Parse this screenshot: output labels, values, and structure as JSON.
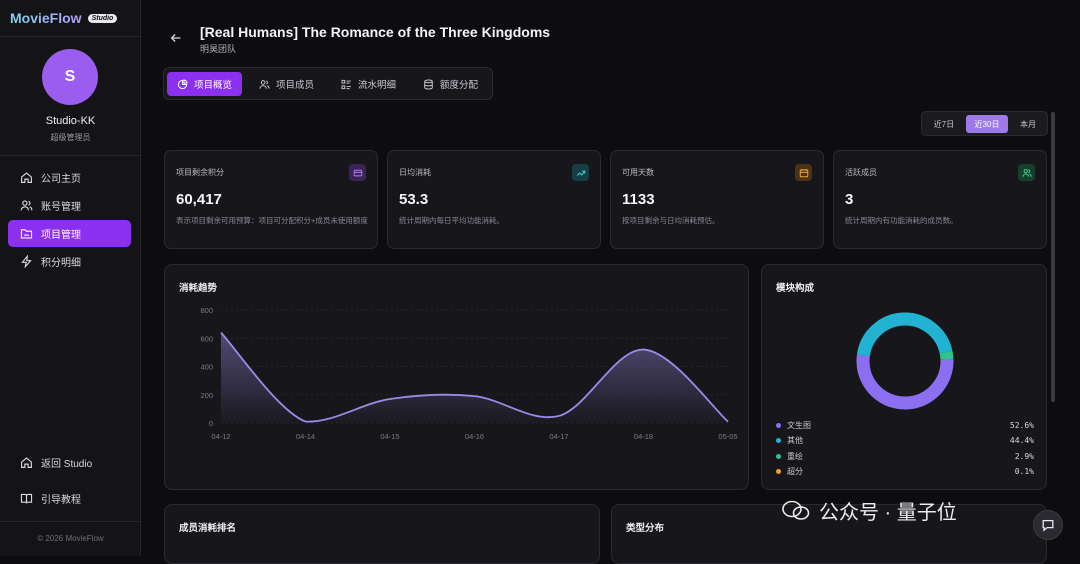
{
  "sidebar": {
    "logo_text": "MovieFlow",
    "logo_badge": "Studio",
    "avatar_letter": "S",
    "user_name": "Studio-KK",
    "user_role": "超级管理员",
    "items": [
      {
        "label": "公司主页",
        "icon": "home-icon"
      },
      {
        "label": "账号管理",
        "icon": "users-icon"
      },
      {
        "label": "项目管理",
        "icon": "folder-icon",
        "active": true
      },
      {
        "label": "积分明细",
        "icon": "bolt-icon"
      }
    ],
    "bottom_items": [
      {
        "label": "返回 Studio",
        "icon": "home-icon"
      },
      {
        "label": "引导教程",
        "icon": "book-icon"
      }
    ],
    "copyright": "© 2026 MovieFlow"
  },
  "header": {
    "title": "[Real Humans] The Romance of the Three Kingdoms",
    "subtitle": "明昊团队"
  },
  "tabs": [
    {
      "label": "项目概览",
      "icon": "pie-icon",
      "active": true
    },
    {
      "label": "项目成员",
      "icon": "users-icon"
    },
    {
      "label": "流水明细",
      "icon": "list-icon"
    },
    {
      "label": "额度分配",
      "icon": "database-icon"
    }
  ],
  "range": {
    "options": [
      "近7日",
      "近30日",
      "本月"
    ],
    "selected": "近30日"
  },
  "stats": [
    {
      "label": "项目剩余积分",
      "value": "60,417",
      "desc": "表示项目剩余可用预算：项目可分配积分+成员未使用额度",
      "icon": "wallet-icon",
      "icon_color": "#b07cf5",
      "icon_bg": "#3a2556"
    },
    {
      "label": "日均消耗",
      "value": "53.3",
      "desc": "统计周期内每日平均功能消耗。",
      "icon": "trend-icon",
      "icon_color": "#3fd0d8",
      "icon_bg": "#173e45"
    },
    {
      "label": "可用天数",
      "value": "1133",
      "desc": "按项目剩余与日均消耗预估。",
      "icon": "calendar-icon",
      "icon_color": "#f0a040",
      "icon_bg": "#4a3216"
    },
    {
      "label": "活跃成员",
      "value": "3",
      "desc": "统计周期内有功能消耗的成员数。",
      "icon": "users-icon",
      "icon_color": "#3fc890",
      "icon_bg": "#16402e"
    }
  ],
  "trend": {
    "title": "消耗趋势",
    "chart_data": {
      "type": "area",
      "categories": [
        "04-12",
        "04-14",
        "04-15",
        "04-16",
        "04-17",
        "04-18",
        "05-05"
      ],
      "values": [
        640,
        10,
        170,
        190,
        50,
        520,
        10
      ],
      "ylim": [
        0,
        800
      ],
      "yticks": [
        "800",
        "600",
        "400",
        "200",
        "0"
      ],
      "color": "#9d8ae8"
    }
  },
  "composition": {
    "title": "模块构成",
    "chart_data": {
      "type": "pie",
      "slices": [
        {
          "label": "文生图",
          "value": 52.6,
          "display": "52.6%",
          "color": "#8c6ef0"
        },
        {
          "label": "其他",
          "value": 44.4,
          "display": "44.4%",
          "color": "#22b3d3"
        },
        {
          "label": "重绘",
          "value": 2.9,
          "display": "2.9%",
          "color": "#2fc58a"
        },
        {
          "label": "超分",
          "value": 0.1,
          "display": "0.1%",
          "color": "#f0a030"
        }
      ]
    }
  },
  "bottom_panels": {
    "ranking_title": "成员消耗排名",
    "type_title": "类型分布"
  },
  "watermark": {
    "text": "公众号 · 量子位"
  }
}
